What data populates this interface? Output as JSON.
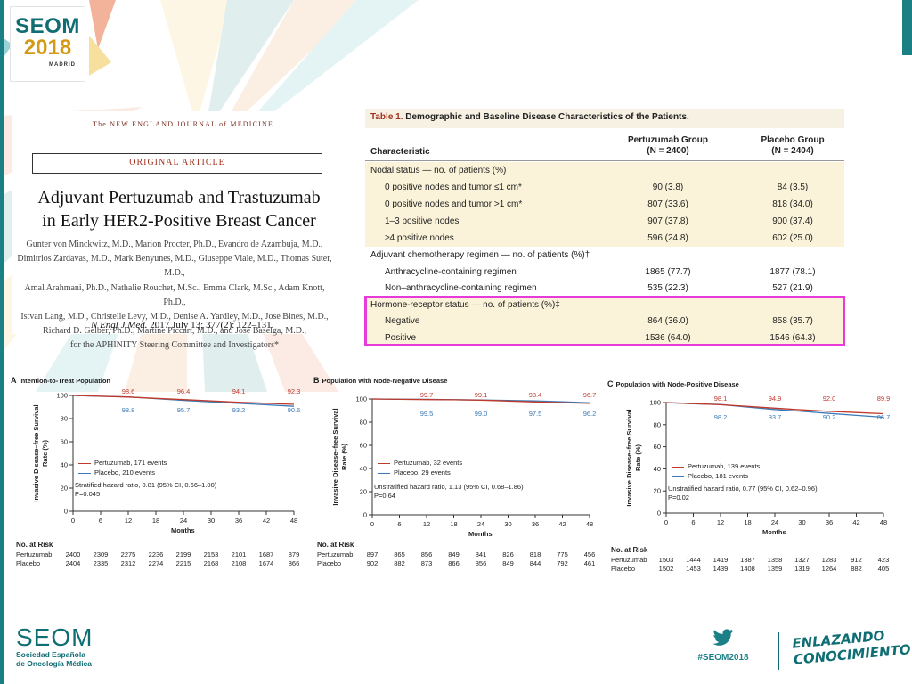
{
  "brand": {
    "logo_title": "SEOM",
    "logo_year": "2018",
    "logo_city": "MADRID",
    "footer_name": "SEOM",
    "footer_sub1": "Sociedad Española",
    "footer_sub2": "de Oncología Médica",
    "hashtag": "#SEOM2018",
    "slogan1": "ENLAZANDO",
    "slogan2": "CONOCIMIENTO",
    "twitter_icon": "twitter-bird-icon",
    "accent": "#1b7f86"
  },
  "article": {
    "journal": "The NEW ENGLAND JOURNAL of MEDICINE",
    "type": "ORIGINAL ARTICLE",
    "title_line1": "Adjuvant Pertuzumab and Trastuzumab",
    "title_line2": "in Early HER2-Positive Breast Cancer",
    "authors": [
      "Gunter von Minckwitz, M.D., Marion Procter, Ph.D., Evandro de Azambuja, M.D.,",
      "Dimitrios Zardavas, M.D., Mark Benyunes, M.D., Giuseppe Viale, M.D., Thomas Suter, M.D.,",
      "Amal Arahmani, Ph.D., Nathalie Rouchet, M.Sc., Emma Clark, M.Sc., Adam Knott, Ph.D.,",
      "Istvan Lang, M.D., Christelle Levy, M.D., Denise A. Yardley, M.D., Jose Bines, M.D.,",
      "Richard D. Gelber, Ph.D., Martine Piccart, M.D., and Jose Baselga, M.D.,",
      "for the APHINITY Steering Committee and Investigators*"
    ],
    "citation_journal": "N Engl J Med.",
    "citation_rest": " 2017 July 13; 377(2): 122–131."
  },
  "table": {
    "title_label": "Table 1.",
    "title_text": " Demographic and Baseline Disease Characteristics of the Patients.",
    "col_characteristic": "Characteristic",
    "col_group1_l1": "Pertuzumab Group",
    "col_group1_l2": "(N = 2400)",
    "col_group2_l1": "Placebo Group",
    "col_group2_l2": "(N = 2404)",
    "rows": [
      {
        "label": "Nodal status — no. of patients (%)",
        "v1": "",
        "v2": ""
      },
      {
        "label": "0 positive nodes and tumor ≤1 cm*",
        "v1": "90 (3.8)",
        "v2": "84 (3.5)"
      },
      {
        "label": "0 positive nodes and tumor >1 cm*",
        "v1": "807 (33.6)",
        "v2": "818 (34.0)"
      },
      {
        "label": "1–3 positive nodes",
        "v1": "907 (37.8)",
        "v2": "900 (37.4)"
      },
      {
        "label": "≥4 positive nodes",
        "v1": "596 (24.8)",
        "v2": "602 (25.0)"
      },
      {
        "label": "Adjuvant chemotherapy regimen — no. of patients (%)†",
        "v1": "",
        "v2": ""
      },
      {
        "label": "Anthracycline-containing regimen",
        "v1": "1865 (77.7)",
        "v2": "1877 (78.1)"
      },
      {
        "label": "Non–anthracycline-containing regimen",
        "v1": "535 (22.3)",
        "v2": "527 (21.9)"
      },
      {
        "label": "Hormone-receptor status — no. of patients (%)‡",
        "v1": "",
        "v2": ""
      },
      {
        "label": "Negative",
        "v1": "864 (36.0)",
        "v2": "858 (35.7)"
      },
      {
        "label": "Positive",
        "v1": "1536 (64.0)",
        "v2": "1546 (64.3)"
      }
    ],
    "highlight_color": "#e83ad8"
  },
  "chart_data": [
    {
      "type": "line",
      "title": "Intention-to-Treat Population",
      "letter": "A",
      "xlabel": "Months",
      "ylabel": "Invasive Disease–free Survival Rate (%)",
      "xlim": [
        0,
        48
      ],
      "ylim": [
        0,
        100
      ],
      "xticks": [
        0,
        6,
        12,
        18,
        24,
        30,
        36,
        42,
        48
      ],
      "yticks": [
        0,
        20,
        40,
        60,
        80,
        100
      ],
      "series": [
        {
          "name": "Pertuzumab, 171 events",
          "color": "#c0392b",
          "x": [
            0,
            6,
            12,
            18,
            24,
            30,
            36,
            42,
            48
          ],
          "y": [
            100,
            99.3,
            98.6,
            97.5,
            96.4,
            95.3,
            94.1,
            93.2,
            92.3
          ]
        },
        {
          "name": "Placebo, 210 events",
          "color": "#3a7ab8",
          "x": [
            0,
            6,
            12,
            18,
            24,
            30,
            36,
            42,
            48
          ],
          "y": [
            100,
            99.2,
            98.8,
            97.2,
            95.7,
            94.5,
            93.2,
            91.9,
            90.6
          ]
        }
      ],
      "labels_top": [
        "98.6",
        "96.4",
        "94.1",
        "92.3"
      ],
      "labels_bottom": [
        "98.8",
        "95.7",
        "93.2",
        "90.6"
      ],
      "label_months": [
        12,
        24,
        36,
        48
      ],
      "stat_line1": "Stratified hazard ratio, 0.81 (95% CI, 0.66–1.00)",
      "stat_line2": "P=0.045",
      "risk_title": "No. at Risk",
      "risk_rows": [
        {
          "name": "Pertuzumab",
          "values": [
            "2400",
            "2309",
            "2275",
            "2236",
            "2199",
            "2153",
            "2101",
            "1687",
            "879"
          ]
        },
        {
          "name": "Placebo",
          "values": [
            "2404",
            "2335",
            "2312",
            "2274",
            "2215",
            "2168",
            "2108",
            "1674",
            "866"
          ]
        }
      ]
    },
    {
      "type": "line",
      "title": "Population with Node-Negative Disease",
      "letter": "B",
      "xlabel": "Months",
      "ylabel": "Invasive Disease–free Survival Rate (%)",
      "xlim": [
        0,
        48
      ],
      "ylim": [
        0,
        100
      ],
      "xticks": [
        0,
        6,
        12,
        18,
        24,
        30,
        36,
        42,
        48
      ],
      "yticks": [
        0,
        20,
        40,
        60,
        80,
        100
      ],
      "series": [
        {
          "name": "Pertuzumab, 32 events",
          "color": "#c0392b",
          "x": [
            0,
            6,
            12,
            18,
            24,
            30,
            36,
            42,
            48
          ],
          "y": [
            100,
            99.7,
            99.5,
            99.3,
            99.0,
            98.2,
            97.5,
            96.8,
            96.2
          ]
        },
        {
          "name": "Placebo, 29 events",
          "color": "#3a7ab8",
          "x": [
            0,
            6,
            12,
            18,
            24,
            30,
            36,
            42,
            48
          ],
          "y": [
            100,
            99.8,
            99.7,
            99.4,
            99.1,
            98.7,
            98.4,
            97.6,
            96.7
          ]
        }
      ],
      "labels_top": [
        "99.7",
        "99.1",
        "98.4",
        "96.7"
      ],
      "labels_bottom": [
        "99.5",
        "99.0",
        "97.5",
        "96.2"
      ],
      "label_months": [
        12,
        24,
        36,
        48
      ],
      "stat_line1": "Unstratified hazard ratio, 1.13 (95% CI, 0.68–1.86)",
      "stat_line2": "P=0.64",
      "risk_title": "No. at Risk",
      "risk_rows": [
        {
          "name": "Pertuzumab",
          "values": [
            "897",
            "865",
            "856",
            "849",
            "841",
            "826",
            "818",
            "775",
            "456"
          ]
        },
        {
          "name": "Placebo",
          "values": [
            "902",
            "882",
            "873",
            "866",
            "856",
            "849",
            "844",
            "792",
            "461"
          ]
        }
      ]
    },
    {
      "type": "line",
      "title": "Population with Node-Positive Disease",
      "letter": "C",
      "xlabel": "Months",
      "ylabel": "Invasive Disease–free Survival Rate (%)",
      "xlim": [
        0,
        48
      ],
      "ylim": [
        0,
        100
      ],
      "xticks": [
        0,
        6,
        12,
        18,
        24,
        30,
        36,
        42,
        48
      ],
      "yticks": [
        0,
        20,
        40,
        60,
        80,
        100
      ],
      "series": [
        {
          "name": "Pertuzumab, 139 events",
          "color": "#c0392b",
          "x": [
            0,
            6,
            12,
            18,
            24,
            30,
            36,
            42,
            48
          ],
          "y": [
            100,
            99.0,
            98.1,
            96.5,
            94.9,
            93.4,
            92.0,
            91.0,
            89.9
          ]
        },
        {
          "name": "Placebo, 181 events",
          "color": "#3a7ab8",
          "x": [
            0,
            6,
            12,
            18,
            24,
            30,
            36,
            42,
            48
          ],
          "y": [
            100,
            98.9,
            98.2,
            95.9,
            93.7,
            92.0,
            90.2,
            88.4,
            86.7
          ]
        }
      ],
      "labels_top": [
        "98.1",
        "94.9",
        "92.0",
        "89.9"
      ],
      "labels_bottom": [
        "98.2",
        "93.7",
        "90.2",
        "86.7"
      ],
      "label_months": [
        12,
        24,
        36,
        48
      ],
      "stat_line1": "Unstratified hazard ratio, 0.77 (95% CI, 0.62–0.96)",
      "stat_line2": "P=0.02",
      "risk_title": "No. at Risk",
      "risk_rows": [
        {
          "name": "Pertuzumab",
          "values": [
            "1503",
            "1444",
            "1419",
            "1387",
            "1358",
            "1327",
            "1283",
            "912",
            "423"
          ]
        },
        {
          "name": "Placebo",
          "values": [
            "1502",
            "1453",
            "1439",
            "1408",
            "1359",
            "1319",
            "1264",
            "882",
            "405"
          ]
        }
      ]
    }
  ]
}
